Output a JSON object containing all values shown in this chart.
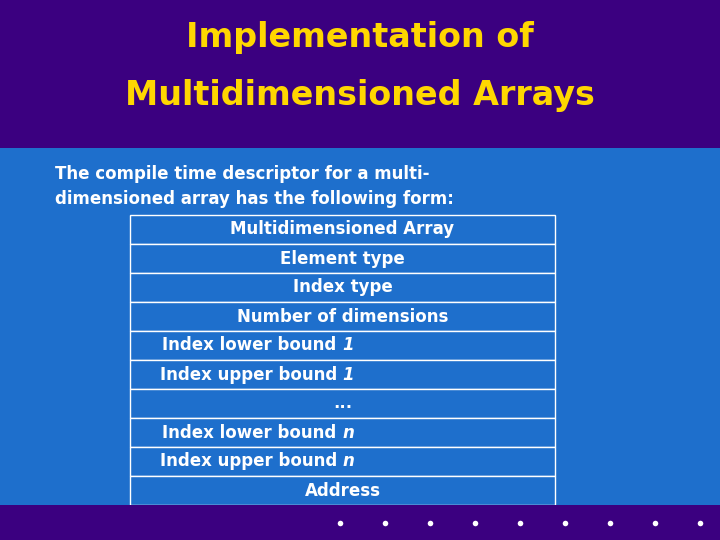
{
  "title_line1": "Implementation of",
  "title_line2": "Multidimensioned Arrays",
  "title_color": "#FFD700",
  "title_bg_color": "#3B0080",
  "body_bg_color": "#1E6FCC",
  "subtitle_line1": "The compile time descriptor for a multi-",
  "subtitle_line2": "dimensioned array has the following form:",
  "subtitle_color": "#FFFFFF",
  "table_rows": [
    {
      "text": "Multidimensioned Array",
      "italic_part": null
    },
    {
      "text": "Element type",
      "italic_part": null
    },
    {
      "text": "Index type",
      "italic_part": null
    },
    {
      "text": "Number of dimensions",
      "italic_part": null
    },
    {
      "text": "Index lower bound ",
      "italic_part": "1"
    },
    {
      "text": "Index upper bound ",
      "italic_part": "1"
    },
    {
      "text": "...",
      "italic_part": null
    },
    {
      "text": "Index lower bound ",
      "italic_part": "n"
    },
    {
      "text": "Index upper bound ",
      "italic_part": "n"
    },
    {
      "text": "Address",
      "italic_part": null
    }
  ],
  "table_text_color": "#FFFFFF",
  "table_border_color": "#FFFFFF",
  "table_fill_color": "#1E6FCC",
  "bottom_bar_color": "#3B0080",
  "dots_color": "#FFFFFF",
  "footer_left_color": "#3B0080",
  "title_fontsize": 24,
  "subtitle_fontsize": 12,
  "table_fontsize": 12
}
